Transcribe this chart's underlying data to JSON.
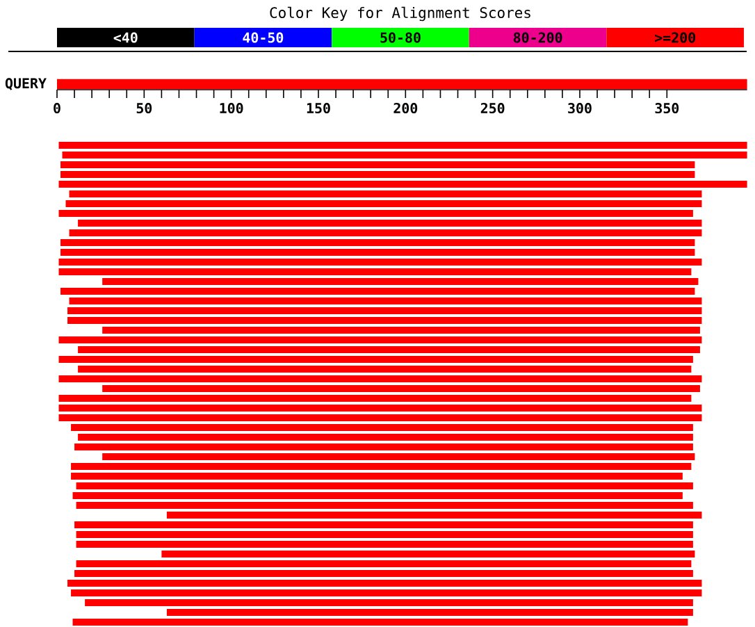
{
  "chart_data": [
    {
      "type": "bar",
      "orientation": "horizontal",
      "title": "Color Key for Alignment Scores",
      "annotations": [
        "<40",
        "40-50",
        "50-80",
        "80-200",
        ">=200"
      ],
      "categories": [
        "QUERY"
      ],
      "base": [
        0
      ],
      "values": [
        396
      ],
      "color": "#ff0000",
      "xlim": [
        0,
        396
      ],
      "xticks": [
        0,
        50,
        100,
        150,
        200,
        250,
        300,
        350
      ]
    },
    {
      "type": "bar",
      "orientation": "horizontal",
      "tick_labels": false,
      "xlim": [
        0,
        396
      ],
      "color": "#ff0000",
      "categories": [
        null,
        null,
        null,
        null,
        null,
        null,
        null,
        null,
        null,
        null,
        null,
        null,
        null,
        null,
        null,
        null,
        null,
        null,
        null,
        null,
        null,
        null,
        null,
        null,
        null,
        null,
        null,
        null,
        null,
        null,
        null,
        null,
        null,
        null,
        null,
        null,
        null,
        null,
        null,
        null,
        null,
        null,
        null,
        null,
        null,
        null,
        null,
        null,
        null,
        null
      ],
      "base": [
        1,
        3,
        2,
        2,
        1,
        7,
        5,
        1,
        12,
        7,
        2,
        2,
        1,
        1,
        26,
        2,
        7,
        6,
        6,
        26,
        1,
        12,
        1,
        12,
        1,
        26,
        1,
        1,
        1,
        8,
        12,
        10,
        26,
        8,
        8,
        11,
        9,
        11,
        63,
        10,
        11,
        11,
        60,
        11,
        10,
        6,
        8,
        16,
        63,
        9
      ],
      "values": [
        395,
        393,
        364,
        364,
        395,
        363,
        365,
        364,
        358,
        363,
        364,
        364,
        369,
        363,
        342,
        364,
        363,
        364,
        364,
        343,
        369,
        357,
        364,
        352,
        369,
        343,
        363,
        369,
        369,
        357,
        353,
        355,
        340,
        356,
        351,
        354,
        350,
        354,
        307,
        355,
        354,
        354,
        306,
        353,
        355,
        364,
        362,
        349,
        302,
        353
      ]
    }
  ]
}
